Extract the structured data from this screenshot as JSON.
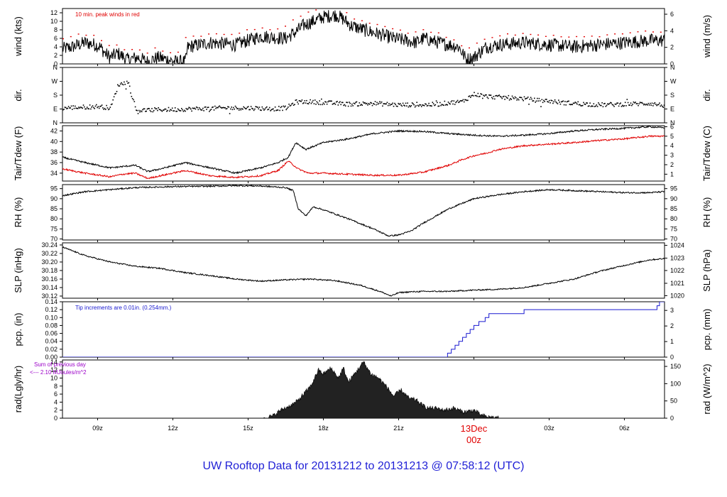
{
  "title": "UW Rooftop Data for 20131212  to  20131213 @ 07:58:12  (UTC)",
  "colors": {
    "black": "#000000",
    "red": "#e00000",
    "blue": "#1a1ad0",
    "purple": "#9b00c8",
    "date_red": "#e00000",
    "title_blue": "#1f1fd6"
  },
  "chart_data": {
    "type": "line",
    "x_range_hours": [
      7.6,
      31.6
    ],
    "x_ticks": [
      {
        "hour": 9,
        "label": "09z"
      },
      {
        "hour": 12,
        "label": "12z"
      },
      {
        "hour": 15,
        "label": "15z"
      },
      {
        "hour": 18,
        "label": "18z"
      },
      {
        "hour": 21,
        "label": "21z"
      },
      {
        "hour": 24,
        "label": ""
      },
      {
        "hour": 27,
        "label": "03z"
      },
      {
        "hour": 30,
        "label": "06z"
      }
    ],
    "date_label": {
      "hour": 24,
      "line1": "13Dec",
      "line2": "00z"
    },
    "panels": [
      {
        "id": "wind",
        "left_label": "wind (kts)",
        "right_label": "wind (m/s)",
        "ylim": [
          0,
          13
        ],
        "left_ticks": [
          "0",
          "2",
          "4",
          "6",
          "8",
          "10",
          "12"
        ],
        "left_tick_values": [
          0,
          2,
          4,
          6,
          8,
          10,
          12
        ],
        "right_ticks": [
          "0",
          "2",
          "4",
          "6"
        ],
        "right_tick_values": [
          0,
          3.888,
          7.776,
          11.664
        ],
        "annotation": "10 min. peak winds in red",
        "series": [
          {
            "name": "wind speed",
            "color": "black",
            "style": "line",
            "noise": 1.6,
            "x": [
              7.6,
              8.0,
              8.5,
              8.9,
              9.1,
              9.3,
              9.5,
              9.8,
              10.2,
              10.6,
              11.0,
              11.4,
              11.8,
              12.1,
              12.5,
              12.6,
              13.5,
              14.5,
              15.5,
              16.5,
              16.9,
              17.2,
              17.6,
              18.0,
              18.5,
              18.8,
              19.1,
              19.6,
              20.2,
              20.8,
              21.3,
              21.7,
              22.0,
              22.6,
              23.0,
              23.4,
              23.7,
              24.0,
              24.5,
              25,
              26,
              27,
              28,
              29,
              30,
              31,
              31.6
            ],
            "y": [
              3.5,
              4.0,
              5.0,
              4.5,
              4.0,
              2.5,
              1.5,
              2.5,
              1.0,
              1.5,
              0.5,
              1.5,
              1.0,
              0.5,
              0.5,
              4.0,
              5.0,
              4.5,
              6.5,
              6.0,
              7.5,
              9.0,
              10.0,
              11.0,
              11.5,
              10.5,
              9.0,
              8.0,
              7.0,
              6.0,
              5.5,
              5.0,
              6.0,
              5.0,
              4.5,
              4.0,
              1.0,
              1.5,
              4.0,
              4.5,
              5.0,
              4.5,
              4.0,
              4.5,
              5.0,
              5.5,
              5.5
            ]
          },
          {
            "name": "peak wind",
            "color": "red",
            "style": "dots",
            "offset": 1.4
          }
        ]
      },
      {
        "id": "dir",
        "left_label": "dir.",
        "right_label": "dir.",
        "ylim": [
          0,
          360
        ],
        "left_ticks": [
          "N",
          "E",
          "S",
          "W",
          "N"
        ],
        "left_tick_values": [
          0,
          90,
          180,
          270,
          360
        ],
        "right_ticks": [
          "N",
          "E",
          "S",
          "W",
          "N"
        ],
        "right_tick_values": [
          0,
          90,
          180,
          270,
          360
        ],
        "series": [
          {
            "name": "direction",
            "color": "black",
            "style": "dots",
            "noise": 14,
            "x": [
              7.6,
              9.0,
              9.5,
              9.8,
              10.2,
              10.5,
              11.0,
              11.5,
              12.0,
              13,
              14,
              15,
              16,
              16.5,
              16.9,
              17.5,
              18,
              19,
              20,
              21,
              22,
              22.6,
              23,
              23.5,
              24,
              24.5,
              25,
              26,
              26.5,
              27,
              27.5,
              28,
              29,
              30,
              31,
              31.6
            ],
            "y": [
              100,
              110,
              100,
              250,
              270,
              85,
              85,
              90,
              90,
              95,
              100,
              100,
              95,
              100,
              140,
              140,
              135,
              125,
              130,
              120,
              120,
              125,
              135,
              140,
              190,
              175,
              170,
              160,
              150,
              145,
              135,
              130,
              120,
              125,
              130,
              115
            ]
          }
        ]
      },
      {
        "id": "temp",
        "left_label": "Tair/Tdew (F)",
        "right_label": "Tair/Tdew (C)",
        "ylim": [
          32.5,
          43
        ],
        "left_ticks": [
          "34",
          "36",
          "38",
          "40",
          "42"
        ],
        "left_tick_values": [
          34,
          36,
          38,
          40,
          42
        ],
        "right_ticks": [
          "1",
          "2",
          "3",
          "4",
          "5",
          "6"
        ],
        "right_tick_values": [
          33.8,
          35.6,
          37.4,
          39.2,
          41,
          42.8
        ],
        "series": [
          {
            "name": "Tair",
            "color": "black",
            "style": "line",
            "noise": 0.15,
            "x": [
              7.6,
              8.5,
              9.5,
              10.5,
              11.0,
              11.5,
              12.5,
              13.5,
              14.5,
              15.5,
              16.2,
              16.6,
              16.9,
              17.3,
              18.0,
              19,
              20,
              21,
              22,
              23,
              24,
              25,
              26,
              27,
              28,
              29,
              30,
              31,
              31.6
            ],
            "y": [
              37.0,
              36.0,
              35.0,
              35.5,
              34.3,
              34.8,
              36.0,
              35.0,
              34.0,
              35.0,
              36.0,
              37.0,
              39.8,
              38.5,
              39.8,
              40.5,
              41.5,
              42.0,
              41.9,
              41.5,
              41.2,
              41.0,
              41.2,
              41.5,
              42.0,
              42.3,
              42.5,
              42.8,
              42.6
            ]
          },
          {
            "name": "Tdew",
            "color": "red",
            "style": "line",
            "noise": 0.15,
            "x": [
              7.6,
              8.5,
              9.5,
              10.0,
              10.5,
              11.0,
              11.5,
              12.5,
              13.5,
              14.5,
              15.5,
              16.2,
              16.6,
              17.0,
              17.4,
              18,
              19,
              20,
              21,
              22,
              23,
              23.5,
              24,
              24.5,
              25,
              26,
              27,
              28,
              29,
              30,
              31,
              31.6
            ],
            "y": [
              34.8,
              34.0,
              33.3,
              33.8,
              34.0,
              33.0,
              33.5,
              34.5,
              33.5,
              33.2,
              33.5,
              34.5,
              36.3,
              34.8,
              34.0,
              34.0,
              33.8,
              33.6,
              33.6,
              34.2,
              35.5,
              36.5,
              37.3,
              37.8,
              38.5,
              39.2,
              39.5,
              39.8,
              40.2,
              40.5,
              41.0,
              41.0
            ]
          }
        ]
      },
      {
        "id": "rh",
        "left_label": "RH (%)",
        "right_label": "RH (%)",
        "ylim": [
          69.5,
          97
        ],
        "left_ticks": [
          "70",
          "75",
          "80",
          "85",
          "90",
          "95"
        ],
        "left_tick_values": [
          70,
          75,
          80,
          85,
          90,
          95
        ],
        "right_ticks": [
          "70",
          "75",
          "80",
          "85",
          "90",
          "95"
        ],
        "right_tick_values": [
          70,
          75,
          80,
          85,
          90,
          95
        ],
        "series": [
          {
            "name": "RH",
            "color": "black",
            "style": "line",
            "noise": 0.35,
            "x": [
              7.6,
              8.5,
              9.5,
              10.5,
              12,
              13.5,
              14.5,
              15.5,
              16.5,
              16.8,
              17.0,
              17.3,
              17.6,
              18,
              19,
              20,
              20.6,
              21.0,
              21.5,
              22,
              23,
              24,
              25,
              26,
              27,
              28,
              29,
              30,
              31,
              31.6
            ],
            "y": [
              91.5,
              93.5,
              94.5,
              95.5,
              96,
              96.2,
              96.5,
              96.3,
              95.5,
              94.0,
              85.0,
              81.5,
              86.0,
              84.5,
              80,
              75,
              71.5,
              72.0,
              74.0,
              78,
              85,
              90,
              92,
              93.5,
              94.5,
              94.0,
              93.5,
              93.0,
              93.0,
              93.5
            ]
          }
        ]
      },
      {
        "id": "slp",
        "left_label": "SLP (inHg)",
        "right_label": "SLP (hPa)",
        "ylim": [
          30.115,
          30.245
        ],
        "left_ticks": [
          "30.12",
          "30.14",
          "30.16",
          "30.18",
          "30.20",
          "30.22",
          "30.24"
        ],
        "left_tick_values": [
          30.12,
          30.14,
          30.16,
          30.18,
          30.2,
          30.22,
          30.24
        ],
        "right_ticks": [
          "1020",
          "1021",
          "1022",
          "1023",
          "1024"
        ],
        "right_tick_values": [
          30.121,
          30.15,
          30.18,
          30.209,
          30.239
        ],
        "series": [
          {
            "name": "SLP",
            "color": "black",
            "style": "line",
            "noise": 0.0015,
            "x": [
              7.6,
              8.5,
              9.5,
              10.5,
              11.5,
              12.5,
              13.5,
              14.5,
              15.5,
              16.5,
              17.5,
              18.5,
              19.5,
              20.3,
              20.7,
              21.0,
              21.5,
              22,
              23,
              24,
              25,
              26,
              27,
              28,
              29,
              30,
              31,
              31.6
            ],
            "y": [
              30.235,
              30.215,
              30.2,
              30.19,
              30.185,
              30.175,
              30.168,
              30.16,
              30.155,
              30.158,
              30.16,
              30.156,
              30.145,
              30.13,
              30.12,
              30.128,
              30.13,
              30.131,
              30.131,
              30.134,
              30.136,
              30.14,
              30.15,
              30.16,
              30.178,
              30.192,
              30.205,
              30.208
            ]
          }
        ]
      },
      {
        "id": "pcp",
        "left_label": "pcp. (in)",
        "right_label": "pcp. (mm)",
        "ylim": [
          0,
          0.14
        ],
        "left_ticks": [
          "0.00",
          "0.02",
          "0.04",
          "0.06",
          "0.08",
          "0.10",
          "0.12",
          "0.14"
        ],
        "left_tick_values": [
          0,
          0.02,
          0.04,
          0.06,
          0.08,
          0.1,
          0.12,
          0.14
        ],
        "right_ticks": [
          "0",
          "1",
          "2",
          "3"
        ],
        "right_tick_values": [
          0,
          0.03937,
          0.07874,
          0.11811
        ],
        "annotation": "Tip increments are 0.01in. (0.254mm.)",
        "series": [
          {
            "name": "precip",
            "color": "blue",
            "style": "step",
            "x": [
              7.6,
              22.8,
              22.95,
              23.1,
              23.25,
              23.4,
              23.55,
              23.7,
              23.85,
              24.0,
              24.2,
              24.45,
              24.6,
              26.0,
              31.3,
              31.4,
              31.6
            ],
            "y": [
              0,
              0,
              0.01,
              0.02,
              0.03,
              0.04,
              0.05,
              0.06,
              0.07,
              0.08,
              0.09,
              0.1,
              0.11,
              0.12,
              0.13,
              0.14,
              0.14
            ]
          }
        ]
      },
      {
        "id": "rad",
        "left_label": "rad(Lgly/hr)",
        "right_label": "rad (W/m^2)",
        "ylim": [
          0,
          14.5
        ],
        "left_ticks": [
          "0",
          "2",
          "4",
          "6",
          "8",
          "10",
          "12",
          "14"
        ],
        "left_tick_values": [
          0,
          2,
          4,
          6,
          8,
          10,
          12,
          14
        ],
        "right_ticks": [
          "0",
          "50",
          "100",
          "150"
        ],
        "right_tick_values": [
          0,
          4.3,
          8.6,
          12.9
        ],
        "annotation": "Sum of previous day",
        "annotation2": "<--- 2.10 MJoules/m^2",
        "series": [
          {
            "name": "radiation",
            "color": "black",
            "style": "area",
            "noise": 0.55,
            "x": [
              7.6,
              15.6,
              16.0,
              16.3,
              16.8,
              17.0,
              17.5,
              17.8,
              18.0,
              18.3,
              18.6,
              18.8,
              19.0,
              19.3,
              19.6,
              19.9,
              20.2,
              20.5,
              20.8,
              21.1,
              21.4,
              21.7,
              22.0,
              22.2,
              22.5,
              22.8,
              23.2,
              23.6,
              24.0,
              24.3,
              24.6,
              25.0,
              31.6
            ],
            "y": [
              0,
              0,
              0.6,
              2.0,
              3.5,
              4.5,
              8.0,
              12.0,
              11.0,
              12.5,
              10.0,
              12.5,
              9.0,
              11.5,
              14.0,
              11.0,
              10.0,
              8.0,
              5.5,
              7.0,
              5.0,
              4.5,
              3.0,
              2.5,
              2.5,
              2.0,
              2.5,
              1.5,
              2.0,
              0.7,
              0.3,
              0,
              0
            ]
          }
        ]
      }
    ]
  }
}
